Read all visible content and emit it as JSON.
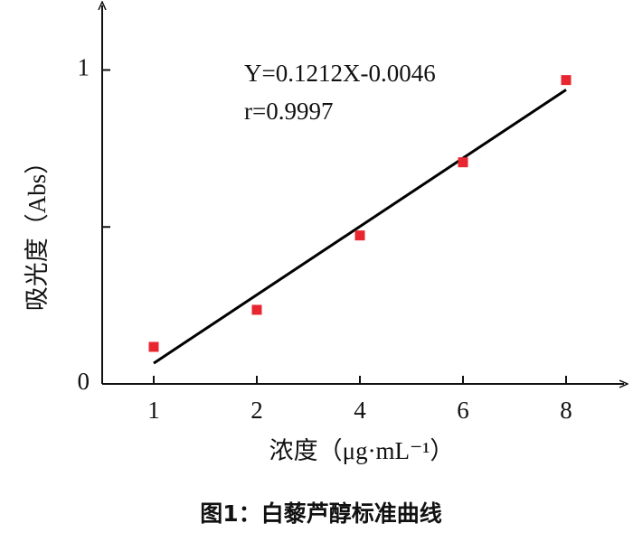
{
  "chart_data": {
    "type": "scatter",
    "caption": "图1：白藜芦醇标准曲线",
    "x_label": "浓度（μg·mL⁻¹）",
    "y_label": "吸光度（Abs）",
    "annotations": [
      "Y=0.1212X-0.0046",
      "r=0.9997"
    ],
    "categories": [
      "1",
      "2",
      "4",
      "6",
      "8"
    ],
    "values": [
      0.118,
      0.236,
      0.473,
      0.706,
      0.968
    ],
    "color": "#e8262f",
    "trendline": {
      "values": [
        0.066,
        0.937
      ],
      "color": "#000000"
    },
    "ylim": [
      0,
      1.2
    ],
    "yticks": [
      0,
      1
    ],
    "minor_yticks": [
      0.5
    ]
  }
}
